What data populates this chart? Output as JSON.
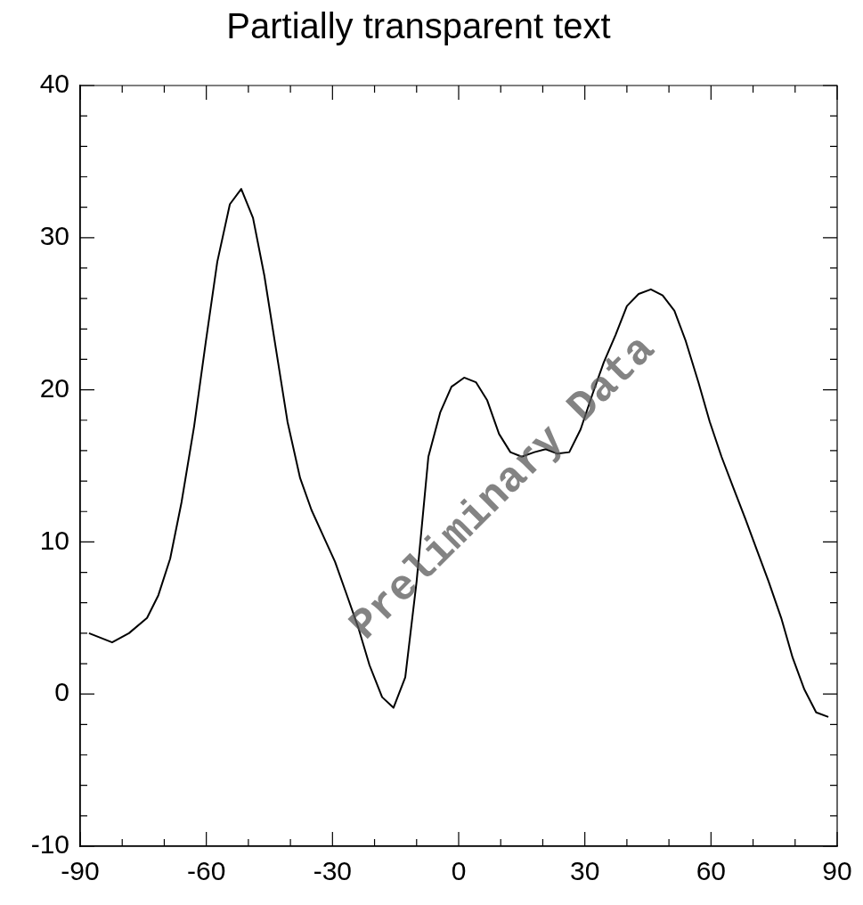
{
  "chart_data": {
    "type": "line",
    "title": "Partially transparent text",
    "x": [
      -87.9,
      -82.4,
      -78.4,
      -74.1,
      -71.4,
      -68.6,
      -65.9,
      -62.9,
      -60.1,
      -57.4,
      -54.4,
      -51.7,
      -48.9,
      -46.2,
      -43.4,
      -40.7,
      -37.7,
      -35.0,
      -32.2,
      -29.4,
      -26.7,
      -23.9,
      -21.2,
      -18.2,
      -15.5,
      -12.7,
      -10.0,
      -7.2,
      -4.4,
      -1.7,
      1.3,
      4.1,
      6.8,
      9.6,
      12.3,
      15.0,
      18.0,
      20.7,
      23.5,
      26.3,
      29.0,
      31.8,
      34.5,
      37.3,
      40.0,
      42.8,
      45.7,
      48.5,
      51.3,
      54.0,
      57.0,
      59.7,
      62.5,
      65.4,
      68.2,
      71.0,
      73.7,
      76.7,
      79.4,
      82.2,
      85.0,
      87.9
    ],
    "series": [
      {
        "color": "#000000",
        "values": [
          4.0,
          3.4,
          4.0,
          5.0,
          6.5,
          8.9,
          12.6,
          17.6,
          23.2,
          28.4,
          32.2,
          33.2,
          31.3,
          27.5,
          22.6,
          17.9,
          14.2,
          12.1,
          10.4,
          8.7,
          6.6,
          4.4,
          1.9,
          -0.2,
          -0.9,
          1.1,
          7.4,
          15.6,
          18.5,
          20.2,
          20.8,
          20.5,
          19.3,
          17.1,
          15.9,
          15.6,
          15.9,
          16.1,
          15.8,
          15.9,
          17.4,
          19.7,
          21.8,
          23.6,
          25.5,
          26.3,
          26.6,
          26.2,
          25.2,
          23.2,
          20.5,
          17.9,
          15.6,
          13.5,
          11.5,
          9.4,
          7.4,
          5.0,
          2.4,
          0.3,
          -1.2,
          -1.5
        ]
      }
    ],
    "xlim": [
      -90,
      90
    ],
    "xticks": [
      -90,
      {
        "value": -80,
        "label": null
      },
      {
        "value": -70,
        "label": null
      },
      -60,
      {
        "value": -50,
        "label": null
      },
      {
        "value": -40,
        "label": null
      },
      -30,
      {
        "value": -20,
        "label": null
      },
      {
        "value": -10,
        "label": null
      },
      0,
      {
        "value": 10,
        "label": null
      },
      {
        "value": 20,
        "label": null
      },
      30,
      {
        "value": 40,
        "label": null
      },
      {
        "value": 50,
        "label": null
      },
      60,
      {
        "value": 70,
        "label": null
      },
      {
        "value": 80,
        "label": null
      },
      90
    ],
    "ylim": [
      -10,
      40
    ],
    "yticks": [
      -10,
      {
        "value": -8,
        "label": null
      },
      {
        "value": -6,
        "label": null
      },
      {
        "value": -4,
        "label": null
      },
      {
        "value": -2,
        "label": null
      },
      0,
      {
        "value": 2,
        "label": null
      },
      {
        "value": 4,
        "label": null
      },
      {
        "value": 6,
        "label": null
      },
      {
        "value": 8,
        "label": null
      },
      10,
      {
        "value": 12,
        "label": null
      },
      {
        "value": 14,
        "label": null
      },
      {
        "value": 16,
        "label": null
      },
      {
        "value": 18,
        "label": null
      },
      20,
      {
        "value": 22,
        "label": null
      },
      {
        "value": 24,
        "label": null
      },
      {
        "value": 26,
        "label": null
      },
      {
        "value": 28,
        "label": null
      },
      30,
      {
        "value": 32,
        "label": null
      },
      {
        "value": 34,
        "label": null
      },
      {
        "value": 36,
        "label": null
      },
      {
        "value": 38,
        "label": null
      },
      40
    ],
    "grid": false,
    "legend": false,
    "marker": "none",
    "line_style": "solid",
    "annotations": [
      "Preliminary Data"
    ]
  }
}
